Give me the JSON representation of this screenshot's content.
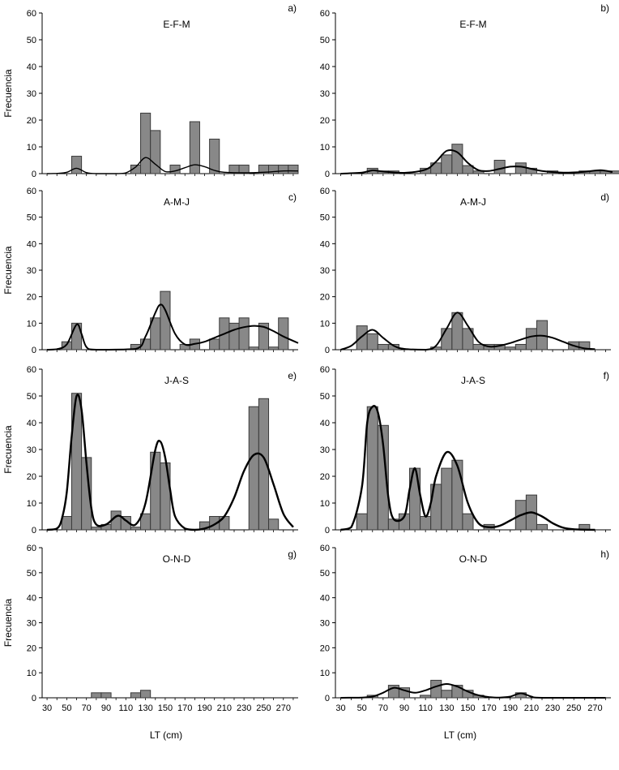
{
  "figure": {
    "ylabel": "Frecuencia",
    "xlabel": "LT (cm)",
    "x_ticks": [
      30,
      50,
      70,
      90,
      110,
      130,
      150,
      170,
      190,
      210,
      230,
      250,
      270
    ],
    "y_ticks": [
      0,
      10,
      20,
      30,
      40,
      50,
      60
    ]
  },
  "chart_data": [
    {
      "type": "bar",
      "panel": "a)",
      "title": "E-F-M",
      "xlabel": "",
      "ylabel": "Frecuencia",
      "xlim": [
        25,
        285
      ],
      "ylim": [
        0,
        60
      ],
      "bar_color": "#888888",
      "curve_color": "#000000",
      "bars": [
        {
          "x": 60,
          "y": 6.5
        },
        {
          "x": 120,
          "y": 3.2
        },
        {
          "x": 130,
          "y": 22.6
        },
        {
          "x": 140,
          "y": 16.1
        },
        {
          "x": 160,
          "y": 3.2
        },
        {
          "x": 180,
          "y": 19.4
        },
        {
          "x": 200,
          "y": 12.9
        },
        {
          "x": 220,
          "y": 3.2
        },
        {
          "x": 230,
          "y": 3.2
        },
        {
          "x": 250,
          "y": 3.2
        },
        {
          "x": 260,
          "y": 3.2
        },
        {
          "x": 270,
          "y": 3.2
        },
        {
          "x": 280,
          "y": 3.2
        }
      ],
      "curve": [
        {
          "x": 30,
          "y": 0
        },
        {
          "x": 40,
          "y": 0.1
        },
        {
          "x": 50,
          "y": 0.5
        },
        {
          "x": 60,
          "y": 2
        },
        {
          "x": 70,
          "y": 0.4
        },
        {
          "x": 80,
          "y": 0
        },
        {
          "x": 100,
          "y": 0
        },
        {
          "x": 110,
          "y": 0.3
        },
        {
          "x": 120,
          "y": 2.5
        },
        {
          "x": 130,
          "y": 6
        },
        {
          "x": 140,
          "y": 3.5
        },
        {
          "x": 150,
          "y": 0.8
        },
        {
          "x": 160,
          "y": 1
        },
        {
          "x": 170,
          "y": 2.2
        },
        {
          "x": 180,
          "y": 3.3
        },
        {
          "x": 190,
          "y": 2.6
        },
        {
          "x": 200,
          "y": 1.2
        },
        {
          "x": 210,
          "y": 0.5
        },
        {
          "x": 230,
          "y": 0.3
        },
        {
          "x": 250,
          "y": 0.5
        },
        {
          "x": 270,
          "y": 1
        },
        {
          "x": 285,
          "y": 1
        }
      ]
    },
    {
      "type": "bar",
      "panel": "b)",
      "title": "E-F-M",
      "xlabel": "",
      "ylabel": "",
      "xlim": [
        25,
        285
      ],
      "ylim": [
        0,
        60
      ],
      "bar_color": "#888888",
      "curve_color": "#000000",
      "bars": [
        {
          "x": 60,
          "y": 2
        },
        {
          "x": 70,
          "y": 1
        },
        {
          "x": 80,
          "y": 1
        },
        {
          "x": 110,
          "y": 2
        },
        {
          "x": 120,
          "y": 4
        },
        {
          "x": 130,
          "y": 7
        },
        {
          "x": 140,
          "y": 11
        },
        {
          "x": 150,
          "y": 3
        },
        {
          "x": 160,
          "y": 1
        },
        {
          "x": 180,
          "y": 5
        },
        {
          "x": 200,
          "y": 4
        },
        {
          "x": 210,
          "y": 2
        },
        {
          "x": 230,
          "y": 1
        },
        {
          "x": 260,
          "y": 1
        },
        {
          "x": 270,
          "y": 1
        },
        {
          "x": 280,
          "y": 1
        },
        {
          "x": 290,
          "y": 1
        }
      ],
      "curve": [
        {
          "x": 30,
          "y": 0
        },
        {
          "x": 50,
          "y": 0.4
        },
        {
          "x": 60,
          "y": 1.2
        },
        {
          "x": 70,
          "y": 0.8
        },
        {
          "x": 90,
          "y": 0.3
        },
        {
          "x": 110,
          "y": 1.5
        },
        {
          "x": 120,
          "y": 4.5
        },
        {
          "x": 130,
          "y": 8.5
        },
        {
          "x": 140,
          "y": 8
        },
        {
          "x": 150,
          "y": 4
        },
        {
          "x": 160,
          "y": 1.3
        },
        {
          "x": 170,
          "y": 1
        },
        {
          "x": 180,
          "y": 1.8
        },
        {
          "x": 190,
          "y": 2.6
        },
        {
          "x": 200,
          "y": 2.6
        },
        {
          "x": 210,
          "y": 1.8
        },
        {
          "x": 220,
          "y": 1
        },
        {
          "x": 240,
          "y": 0.4
        },
        {
          "x": 260,
          "y": 0.7
        },
        {
          "x": 275,
          "y": 1.3
        },
        {
          "x": 290,
          "y": 0.6
        }
      ]
    },
    {
      "type": "bar",
      "panel": "c)",
      "title": "A-M-J",
      "xlabel": "",
      "ylabel": "Frecuencia",
      "xlim": [
        25,
        285
      ],
      "ylim": [
        0,
        60
      ],
      "bar_color": "#888888",
      "curve_color": "#000000",
      "bars": [
        {
          "x": 50,
          "y": 3
        },
        {
          "x": 60,
          "y": 10
        },
        {
          "x": 120,
          "y": 2
        },
        {
          "x": 130,
          "y": 4
        },
        {
          "x": 140,
          "y": 12
        },
        {
          "x": 150,
          "y": 22
        },
        {
          "x": 170,
          "y": 2
        },
        {
          "x": 180,
          "y": 4
        },
        {
          "x": 200,
          "y": 4
        },
        {
          "x": 210,
          "y": 12
        },
        {
          "x": 220,
          "y": 10
        },
        {
          "x": 230,
          "y": 12
        },
        {
          "x": 240,
          "y": 1
        },
        {
          "x": 250,
          "y": 10
        },
        {
          "x": 260,
          "y": 1
        },
        {
          "x": 270,
          "y": 12
        }
      ],
      "curve": [
        {
          "x": 30,
          "y": 0
        },
        {
          "x": 40,
          "y": 0.2
        },
        {
          "x": 50,
          "y": 2
        },
        {
          "x": 60,
          "y": 9.5
        },
        {
          "x": 65,
          "y": 6
        },
        {
          "x": 70,
          "y": 1
        },
        {
          "x": 80,
          "y": 0
        },
        {
          "x": 120,
          "y": 0.3
        },
        {
          "x": 130,
          "y": 5
        },
        {
          "x": 140,
          "y": 14
        },
        {
          "x": 145,
          "y": 17
        },
        {
          "x": 150,
          "y": 15
        },
        {
          "x": 160,
          "y": 6
        },
        {
          "x": 170,
          "y": 2
        },
        {
          "x": 180,
          "y": 2.2
        },
        {
          "x": 190,
          "y": 3
        },
        {
          "x": 200,
          "y": 4.5
        },
        {
          "x": 210,
          "y": 6
        },
        {
          "x": 220,
          "y": 7.5
        },
        {
          "x": 230,
          "y": 8.5
        },
        {
          "x": 240,
          "y": 9
        },
        {
          "x": 250,
          "y": 8.6
        },
        {
          "x": 260,
          "y": 7
        },
        {
          "x": 270,
          "y": 5
        },
        {
          "x": 285,
          "y": 2.5
        }
      ]
    },
    {
      "type": "bar",
      "panel": "d)",
      "title": "A-M-J",
      "xlabel": "",
      "ylabel": "",
      "xlim": [
        25,
        285
      ],
      "ylim": [
        0,
        60
      ],
      "bar_color": "#888888",
      "curve_color": "#000000",
      "bars": [
        {
          "x": 50,
          "y": 9
        },
        {
          "x": 60,
          "y": 6
        },
        {
          "x": 70,
          "y": 2
        },
        {
          "x": 80,
          "y": 2
        },
        {
          "x": 120,
          "y": 1
        },
        {
          "x": 130,
          "y": 8
        },
        {
          "x": 140,
          "y": 14
        },
        {
          "x": 150,
          "y": 8
        },
        {
          "x": 160,
          "y": 2
        },
        {
          "x": 170,
          "y": 2
        },
        {
          "x": 180,
          "y": 2
        },
        {
          "x": 190,
          "y": 1
        },
        {
          "x": 200,
          "y": 2
        },
        {
          "x": 210,
          "y": 8
        },
        {
          "x": 220,
          "y": 11
        },
        {
          "x": 250,
          "y": 3
        },
        {
          "x": 260,
          "y": 3
        }
      ],
      "curve": [
        {
          "x": 30,
          "y": 0
        },
        {
          "x": 40,
          "y": 1.5
        },
        {
          "x": 50,
          "y": 5
        },
        {
          "x": 60,
          "y": 7.5
        },
        {
          "x": 70,
          "y": 4.5
        },
        {
          "x": 80,
          "y": 1.5
        },
        {
          "x": 90,
          "y": 0.3
        },
        {
          "x": 110,
          "y": 0
        },
        {
          "x": 120,
          "y": 1.5
        },
        {
          "x": 130,
          "y": 8
        },
        {
          "x": 140,
          "y": 14
        },
        {
          "x": 150,
          "y": 9
        },
        {
          "x": 160,
          "y": 3
        },
        {
          "x": 170,
          "y": 1.2
        },
        {
          "x": 180,
          "y": 1.5
        },
        {
          "x": 190,
          "y": 2.5
        },
        {
          "x": 200,
          "y": 3.8
        },
        {
          "x": 210,
          "y": 5
        },
        {
          "x": 220,
          "y": 5.3
        },
        {
          "x": 230,
          "y": 4.5
        },
        {
          "x": 240,
          "y": 3
        },
        {
          "x": 250,
          "y": 1.5
        },
        {
          "x": 260,
          "y": 0.5
        },
        {
          "x": 270,
          "y": 0.2
        }
      ]
    },
    {
      "type": "bar",
      "panel": "e)",
      "title": "J-A-S",
      "xlabel": "",
      "ylabel": "Frecuencia",
      "xlim": [
        25,
        285
      ],
      "ylim": [
        0,
        60
      ],
      "bar_color": "#888888",
      "curve_color": "#000000",
      "bars": [
        {
          "x": 50,
          "y": 5
        },
        {
          "x": 60,
          "y": 51
        },
        {
          "x": 70,
          "y": 27
        },
        {
          "x": 80,
          "y": 1
        },
        {
          "x": 90,
          "y": 2
        },
        {
          "x": 100,
          "y": 7
        },
        {
          "x": 110,
          "y": 5
        },
        {
          "x": 120,
          "y": 1
        },
        {
          "x": 130,
          "y": 6
        },
        {
          "x": 140,
          "y": 29
        },
        {
          "x": 150,
          "y": 25
        },
        {
          "x": 190,
          "y": 3
        },
        {
          "x": 200,
          "y": 5
        },
        {
          "x": 210,
          "y": 5
        },
        {
          "x": 240,
          "y": 46
        },
        {
          "x": 250,
          "y": 49
        },
        {
          "x": 260,
          "y": 4
        }
      ],
      "curve": [
        {
          "x": 30,
          "y": 0
        },
        {
          "x": 40,
          "y": 0.5
        },
        {
          "x": 45,
          "y": 4
        },
        {
          "x": 50,
          "y": 14
        },
        {
          "x": 55,
          "y": 35
        },
        {
          "x": 60,
          "y": 50
        },
        {
          "x": 65,
          "y": 45
        },
        {
          "x": 70,
          "y": 25
        },
        {
          "x": 75,
          "y": 8
        },
        {
          "x": 80,
          "y": 2
        },
        {
          "x": 90,
          "y": 2
        },
        {
          "x": 100,
          "y": 5
        },
        {
          "x": 105,
          "y": 5
        },
        {
          "x": 110,
          "y": 3.5
        },
        {
          "x": 120,
          "y": 2
        },
        {
          "x": 130,
          "y": 10
        },
        {
          "x": 140,
          "y": 30
        },
        {
          "x": 145,
          "y": 33
        },
        {
          "x": 150,
          "y": 27
        },
        {
          "x": 155,
          "y": 15
        },
        {
          "x": 160,
          "y": 5
        },
        {
          "x": 170,
          "y": 0.5
        },
        {
          "x": 180,
          "y": 0
        },
        {
          "x": 190,
          "y": 0.5
        },
        {
          "x": 200,
          "y": 2
        },
        {
          "x": 210,
          "y": 5
        },
        {
          "x": 220,
          "y": 12
        },
        {
          "x": 230,
          "y": 22
        },
        {
          "x": 240,
          "y": 28
        },
        {
          "x": 250,
          "y": 27
        },
        {
          "x": 260,
          "y": 17
        },
        {
          "x": 270,
          "y": 6
        },
        {
          "x": 280,
          "y": 1
        }
      ]
    },
    {
      "type": "bar",
      "panel": "f)",
      "title": "J-A-S",
      "xlabel": "",
      "ylabel": "",
      "xlim": [
        25,
        285
      ],
      "ylim": [
        0,
        60
      ],
      "bar_color": "#888888",
      "curve_color": "#000000",
      "bars": [
        {
          "x": 50,
          "y": 6
        },
        {
          "x": 60,
          "y": 46
        },
        {
          "x": 70,
          "y": 39
        },
        {
          "x": 80,
          "y": 4
        },
        {
          "x": 90,
          "y": 6
        },
        {
          "x": 100,
          "y": 23
        },
        {
          "x": 110,
          "y": 5
        },
        {
          "x": 120,
          "y": 17
        },
        {
          "x": 130,
          "y": 23
        },
        {
          "x": 140,
          "y": 26
        },
        {
          "x": 150,
          "y": 6
        },
        {
          "x": 170,
          "y": 2
        },
        {
          "x": 200,
          "y": 11
        },
        {
          "x": 210,
          "y": 13
        },
        {
          "x": 220,
          "y": 2
        },
        {
          "x": 260,
          "y": 2
        }
      ],
      "curve": [
        {
          "x": 30,
          "y": 0
        },
        {
          "x": 40,
          "y": 1
        },
        {
          "x": 50,
          "y": 16
        },
        {
          "x": 55,
          "y": 40
        },
        {
          "x": 60,
          "y": 46
        },
        {
          "x": 65,
          "y": 44
        },
        {
          "x": 70,
          "y": 32
        },
        {
          "x": 75,
          "y": 12
        },
        {
          "x": 80,
          "y": 4
        },
        {
          "x": 90,
          "y": 5
        },
        {
          "x": 95,
          "y": 15
        },
        {
          "x": 100,
          "y": 23
        },
        {
          "x": 105,
          "y": 13
        },
        {
          "x": 110,
          "y": 5
        },
        {
          "x": 115,
          "y": 10
        },
        {
          "x": 120,
          "y": 20
        },
        {
          "x": 130,
          "y": 29
        },
        {
          "x": 140,
          "y": 24
        },
        {
          "x": 150,
          "y": 10
        },
        {
          "x": 160,
          "y": 2.5
        },
        {
          "x": 170,
          "y": 1
        },
        {
          "x": 180,
          "y": 1.5
        },
        {
          "x": 190,
          "y": 3.5
        },
        {
          "x": 200,
          "y": 5.5
        },
        {
          "x": 210,
          "y": 6.5
        },
        {
          "x": 220,
          "y": 5
        },
        {
          "x": 230,
          "y": 2.5
        },
        {
          "x": 240,
          "y": 0.8
        },
        {
          "x": 250,
          "y": 0.2
        },
        {
          "x": 270,
          "y": 0
        }
      ]
    },
    {
      "type": "bar",
      "panel": "g)",
      "title": "O-N-D",
      "xlabel": "LT (cm)",
      "ylabel": "Frecuencia",
      "xlim": [
        25,
        285
      ],
      "ylim": [
        0,
        60
      ],
      "bar_color": "#888888",
      "curve_color": "#000000",
      "bars": [
        {
          "x": 80,
          "y": 2
        },
        {
          "x": 90,
          "y": 2
        },
        {
          "x": 120,
          "y": 2
        },
        {
          "x": 130,
          "y": 3
        }
      ],
      "curve": []
    },
    {
      "type": "bar",
      "panel": "h)",
      "title": "O-N-D",
      "xlabel": "LT (cm)",
      "ylabel": "",
      "xlim": [
        25,
        285
      ],
      "ylim": [
        0,
        60
      ],
      "bar_color": "#888888",
      "curve_color": "#000000",
      "bars": [
        {
          "x": 60,
          "y": 1
        },
        {
          "x": 80,
          "y": 5
        },
        {
          "x": 90,
          "y": 4
        },
        {
          "x": 110,
          "y": 1
        },
        {
          "x": 120,
          "y": 7
        },
        {
          "x": 130,
          "y": 3
        },
        {
          "x": 140,
          "y": 5
        },
        {
          "x": 150,
          "y": 3
        },
        {
          "x": 160,
          "y": 1
        },
        {
          "x": 200,
          "y": 2
        }
      ],
      "curve": [
        {
          "x": 30,
          "y": 0
        },
        {
          "x": 50,
          "y": 0.1
        },
        {
          "x": 60,
          "y": 0.5
        },
        {
          "x": 70,
          "y": 2
        },
        {
          "x": 80,
          "y": 4
        },
        {
          "x": 90,
          "y": 3
        },
        {
          "x": 100,
          "y": 2
        },
        {
          "x": 110,
          "y": 3
        },
        {
          "x": 120,
          "y": 4.5
        },
        {
          "x": 130,
          "y": 5.5
        },
        {
          "x": 140,
          "y": 4.5
        },
        {
          "x": 150,
          "y": 2.5
        },
        {
          "x": 160,
          "y": 1
        },
        {
          "x": 170,
          "y": 0.3
        },
        {
          "x": 180,
          "y": 0.1
        },
        {
          "x": 190,
          "y": 0.5
        },
        {
          "x": 200,
          "y": 1.8
        },
        {
          "x": 210,
          "y": 0.5
        },
        {
          "x": 220,
          "y": 0
        },
        {
          "x": 280,
          "y": 0
        }
      ]
    }
  ]
}
